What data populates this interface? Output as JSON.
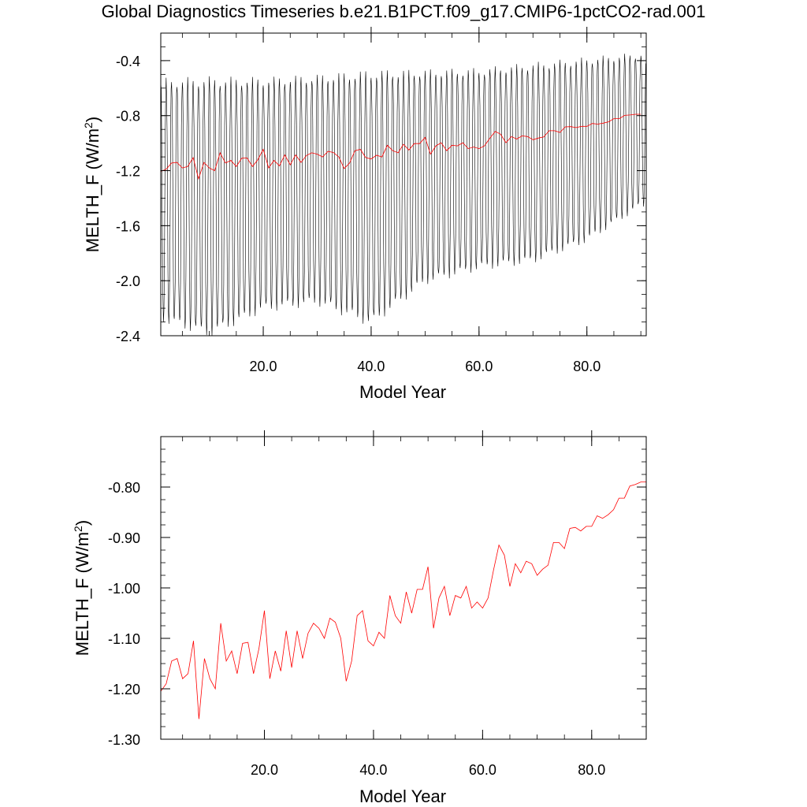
{
  "figure_title": "Global Diagnostics Timeseries b.e21.B1PCT.f09_g17.CMIP6-1pctCO2-rad.001",
  "colors": {
    "monthly": "#000000",
    "annual": "#ff0000",
    "axes": "#000000"
  },
  "chart_data": [
    {
      "type": "line",
      "ylabel_main": "MELTH_F (W/m",
      "ylabel_sup": "2",
      "ylabel_tail": ")",
      "xlabel": "Model Year",
      "xlim": [
        1,
        91
      ],
      "ylim": [
        -2.4,
        -0.2
      ],
      "x_ticks": [
        20,
        40,
        60,
        80
      ],
      "x_tick_labels": [
        "20.0",
        "40.0",
        "60.0",
        "80.0"
      ],
      "y_ticks": [
        -2.4,
        -2.0,
        -1.6,
        -1.2,
        -0.8,
        -0.4
      ],
      "y_tick_labels": [
        "-2.4",
        "-2.0",
        "-1.6",
        "-1.2",
        "-0.8",
        "-0.4"
      ],
      "series": [
        {
          "style": "monthly seasonal cycle, approx. annual range",
          "color": "#000000",
          "x": [
            1,
            10,
            20,
            30,
            40,
            50,
            60,
            70,
            80,
            90
          ],
          "max": [
            -0.56,
            -0.55,
            -0.55,
            -0.53,
            -0.5,
            -0.49,
            -0.48,
            -0.44,
            -0.4,
            -0.36
          ],
          "min": [
            -2.27,
            -2.38,
            -2.2,
            -2.15,
            -2.3,
            -2.0,
            -1.9,
            -1.85,
            -1.7,
            -1.45
          ]
        },
        {
          "style": "annual mean",
          "color": "#ff0000",
          "ref": "annual_mean"
        }
      ]
    },
    {
      "type": "line",
      "ylabel_main": "MELTH_F (W/m",
      "ylabel_sup": "2",
      "ylabel_tail": ")",
      "xlabel": "Model Year",
      "xlim": [
        1,
        90
      ],
      "ylim": [
        -1.3,
        -0.7
      ],
      "x_ticks": [
        20,
        40,
        60,
        80
      ],
      "x_tick_labels": [
        "20.0",
        "40.0",
        "60.0",
        "80.0"
      ],
      "y_ticks": [
        -1.3,
        -1.2,
        -1.1,
        -1.0,
        -0.9,
        -0.8
      ],
      "y_tick_labels": [
        "-1.30",
        "-1.20",
        "-1.10",
        "-1.00",
        "-0.90",
        "-0.80"
      ],
      "series": [
        {
          "name": "",
          "color": "#ff0000",
          "ref": "annual_mean"
        }
      ]
    }
  ],
  "annual_mean": {
    "x": [
      1,
      2,
      3,
      4,
      5,
      6,
      7,
      8,
      9,
      10,
      11,
      12,
      13,
      14,
      15,
      16,
      17,
      18,
      19,
      20,
      21,
      22,
      23,
      24,
      25,
      26,
      27,
      28,
      29,
      30,
      31,
      32,
      33,
      34,
      35,
      36,
      37,
      38,
      39,
      40,
      41,
      42,
      43,
      44,
      45,
      46,
      47,
      48,
      49,
      50,
      51,
      52,
      53,
      54,
      55,
      56,
      57,
      58,
      59,
      60,
      61,
      62,
      63,
      64,
      65,
      66,
      67,
      68,
      69,
      70,
      71,
      72,
      73,
      74,
      75,
      76,
      77,
      78,
      79,
      80,
      81,
      82,
      83,
      84,
      85,
      86,
      87,
      88,
      89,
      90
    ],
    "y": [
      -1.205,
      -1.19,
      -1.145,
      -1.14,
      -1.18,
      -1.17,
      -1.105,
      -1.26,
      -1.14,
      -1.18,
      -1.2,
      -1.07,
      -1.145,
      -1.125,
      -1.17,
      -1.11,
      -1.108,
      -1.17,
      -1.12,
      -1.045,
      -1.18,
      -1.125,
      -1.165,
      -1.085,
      -1.158,
      -1.085,
      -1.14,
      -1.09,
      -1.07,
      -1.08,
      -1.1,
      -1.06,
      -1.068,
      -1.1,
      -1.185,
      -1.145,
      -1.055,
      -1.045,
      -1.105,
      -1.115,
      -1.088,
      -1.1,
      -1.015,
      -1.055,
      -1.07,
      -1.008,
      -1.05,
      -1.003,
      -1.003,
      -0.958,
      -1.08,
      -1.02,
      -0.997,
      -1.055,
      -1.015,
      -1.02,
      -0.997,
      -1.04,
      -1.028,
      -1.04,
      -1.02,
      -0.965,
      -0.915,
      -0.935,
      -0.997,
      -0.952,
      -0.97,
      -0.947,
      -0.952,
      -0.975,
      -0.963,
      -0.955,
      -0.91,
      -0.91,
      -0.922,
      -0.882,
      -0.88,
      -0.887,
      -0.878,
      -0.878,
      -0.857,
      -0.862,
      -0.855,
      -0.845,
      -0.822,
      -0.822,
      -0.798,
      -0.795,
      -0.79,
      -0.79
    ]
  }
}
